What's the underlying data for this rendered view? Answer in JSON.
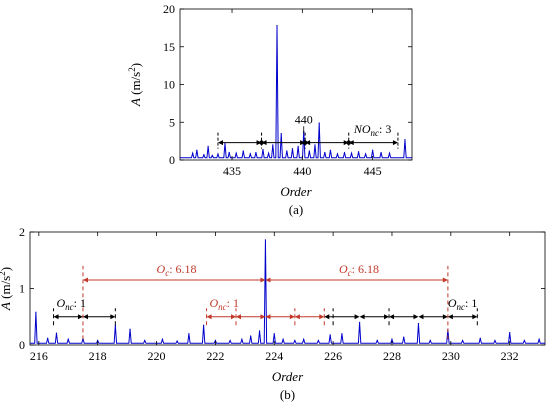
{
  "panels": {
    "a": {
      "label": "(a)"
    },
    "b": {
      "label": "(b)"
    }
  },
  "chart_data": [
    {
      "type": "line",
      "panel": "(a)",
      "xlabel": "Order",
      "ylabel": "A (m/s2)",
      "ylabel_parts": {
        "var": "A",
        "unit": " (m/s",
        "exp": "2",
        "close": ")"
      },
      "xlim": [
        431.3,
        447.8
      ],
      "ylim": [
        0,
        20
      ],
      "xticks": [
        435,
        440,
        445
      ],
      "yticks": [
        0,
        5,
        10,
        15,
        20
      ],
      "grid": false,
      "series_color": "#0000cc",
      "peaks": [
        {
          "x": 432.2,
          "y": 0.9
        },
        {
          "x": 432.5,
          "y": 1.3
        },
        {
          "x": 433.0,
          "y": 0.7
        },
        {
          "x": 433.3,
          "y": 1.8
        },
        {
          "x": 433.6,
          "y": 0.6
        },
        {
          "x": 434.0,
          "y": 0.8
        },
        {
          "x": 434.5,
          "y": 2.2
        },
        {
          "x": 434.8,
          "y": 1.0
        },
        {
          "x": 435.3,
          "y": 0.9
        },
        {
          "x": 435.8,
          "y": 1.2
        },
        {
          "x": 436.3,
          "y": 0.8
        },
        {
          "x": 436.7,
          "y": 1.0
        },
        {
          "x": 437.2,
          "y": 1.4
        },
        {
          "x": 437.6,
          "y": 0.9
        },
        {
          "x": 437.9,
          "y": 2.0
        },
        {
          "x": 438.2,
          "y": 17.8
        },
        {
          "x": 438.5,
          "y": 3.5
        },
        {
          "x": 438.9,
          "y": 1.2
        },
        {
          "x": 439.3,
          "y": 1.5
        },
        {
          "x": 439.7,
          "y": 1.8
        },
        {
          "x": 440.1,
          "y": 3.8
        },
        {
          "x": 440.5,
          "y": 1.2
        },
        {
          "x": 440.9,
          "y": 2.0
        },
        {
          "x": 441.2,
          "y": 4.9
        },
        {
          "x": 441.6,
          "y": 1.0
        },
        {
          "x": 442.0,
          "y": 1.3
        },
        {
          "x": 442.5,
          "y": 0.8
        },
        {
          "x": 443.0,
          "y": 1.0
        },
        {
          "x": 443.5,
          "y": 0.9
        },
        {
          "x": 444.0,
          "y": 1.1
        },
        {
          "x": 444.5,
          "y": 0.8
        },
        {
          "x": 445.0,
          "y": 1.3
        },
        {
          "x": 445.6,
          "y": 1.0
        },
        {
          "x": 446.2,
          "y": 0.9
        },
        {
          "x": 447.3,
          "y": 2.7
        }
      ],
      "intervals": [
        {
          "from": 434.0,
          "to": 437.1,
          "y": 2.3,
          "color": "#000000",
          "label": ""
        },
        {
          "from": 437.1,
          "to": 440.2,
          "y": 2.3,
          "color": "#000000",
          "label": ""
        },
        {
          "from": 440.2,
          "to": 443.3,
          "y": 2.3,
          "color": "#000000",
          "label": ""
        },
        {
          "from": 443.3,
          "to": 446.8,
          "y": 2.3,
          "color": "#000000",
          "label": ""
        }
      ],
      "markers": [
        437.1,
        440.2,
        443.3
      ],
      "annotations": [
        {
          "text": "440",
          "x": 440.1,
          "y": 4.6
        },
        {
          "text_sym": "NO",
          "text_sub": "nc",
          "text_val": ": 3",
          "x": 445.0,
          "y": 3.3
        }
      ]
    },
    {
      "type": "line",
      "panel": "(b)",
      "xlabel": "Order",
      "ylabel": "A (m/s2)",
      "ylabel_parts": {
        "var": "A",
        "unit": " (m/s",
        "exp": "2",
        "close": ")"
      },
      "xlim": [
        215.7,
        233.2
      ],
      "ylim": [
        0,
        2
      ],
      "xticks": [
        216,
        218,
        220,
        222,
        224,
        226,
        228,
        230,
        232
      ],
      "yticks": [
        0,
        1,
        2
      ],
      "grid": false,
      "series_color": "#0000cc",
      "peaks": [
        {
          "x": 215.9,
          "y": 0.58
        },
        {
          "x": 216.3,
          "y": 0.12
        },
        {
          "x": 216.6,
          "y": 0.21
        },
        {
          "x": 217.0,
          "y": 0.1
        },
        {
          "x": 217.5,
          "y": 0.12
        },
        {
          "x": 218.0,
          "y": 0.08
        },
        {
          "x": 218.6,
          "y": 0.35
        },
        {
          "x": 219.1,
          "y": 0.28
        },
        {
          "x": 219.6,
          "y": 0.08
        },
        {
          "x": 220.2,
          "y": 0.1
        },
        {
          "x": 220.7,
          "y": 0.07
        },
        {
          "x": 221.1,
          "y": 0.2
        },
        {
          "x": 221.6,
          "y": 0.35
        },
        {
          "x": 222.0,
          "y": 0.08
        },
        {
          "x": 222.5,
          "y": 0.08
        },
        {
          "x": 222.9,
          "y": 0.1
        },
        {
          "x": 223.2,
          "y": 0.16
        },
        {
          "x": 223.5,
          "y": 0.25
        },
        {
          "x": 223.7,
          "y": 1.86
        },
        {
          "x": 224.0,
          "y": 0.2
        },
        {
          "x": 224.3,
          "y": 0.1
        },
        {
          "x": 224.7,
          "y": 0.08
        },
        {
          "x": 225.0,
          "y": 0.1
        },
        {
          "x": 225.5,
          "y": 0.08
        },
        {
          "x": 225.9,
          "y": 0.18
        },
        {
          "x": 226.3,
          "y": 0.2
        },
        {
          "x": 226.9,
          "y": 0.4
        },
        {
          "x": 227.5,
          "y": 0.08
        },
        {
          "x": 228.0,
          "y": 0.1
        },
        {
          "x": 228.4,
          "y": 0.14
        },
        {
          "x": 228.9,
          "y": 0.38
        },
        {
          "x": 229.3,
          "y": 0.08
        },
        {
          "x": 229.9,
          "y": 0.28
        },
        {
          "x": 230.4,
          "y": 0.08
        },
        {
          "x": 231.0,
          "y": 0.12
        },
        {
          "x": 231.5,
          "y": 0.08
        },
        {
          "x": 232.0,
          "y": 0.22
        },
        {
          "x": 232.5,
          "y": 0.08
        },
        {
          "x": 233.0,
          "y": 0.1
        }
      ],
      "intervals": [
        {
          "from": 216.5,
          "to": 217.5,
          "y": 0.5,
          "color": "#000000"
        },
        {
          "from": 217.5,
          "to": 218.6,
          "y": 0.5,
          "color": "#000000"
        },
        {
          "from": 221.7,
          "to": 222.7,
          "y": 0.5,
          "color": "#c0392b"
        },
        {
          "from": 222.7,
          "to": 223.7,
          "y": 0.5,
          "color": "#c0392b"
        },
        {
          "from": 223.7,
          "to": 224.7,
          "y": 0.5,
          "color": "#c0392b"
        },
        {
          "from": 224.7,
          "to": 225.7,
          "y": 0.5,
          "color": "#c0392b"
        },
        {
          "from": 225.7,
          "to": 226.9,
          "y": 0.5,
          "color": "#000000"
        },
        {
          "from": 226.9,
          "to": 227.9,
          "y": 0.5,
          "color": "#000000"
        },
        {
          "from": 227.9,
          "to": 228.9,
          "y": 0.5,
          "color": "#000000"
        },
        {
          "from": 228.9,
          "to": 229.9,
          "y": 0.5,
          "color": "#000000"
        },
        {
          "from": 229.9,
          "to": 230.9,
          "y": 0.5,
          "color": "#000000"
        },
        {
          "from": 217.5,
          "to": 223.7,
          "y": 1.15,
          "color": "#c0392b"
        },
        {
          "from": 223.7,
          "to": 229.9,
          "y": 1.15,
          "color": "#c0392b"
        }
      ],
      "dashed_lines": [
        {
          "x": 216.5,
          "y1": 0.35,
          "y2": 0.65,
          "color": "#000000"
        },
        {
          "x": 217.5,
          "y1": 0.1,
          "y2": 1.4,
          "color": "#c0392b"
        },
        {
          "x": 218.6,
          "y1": 0.35,
          "y2": 0.65,
          "color": "#000000"
        },
        {
          "x": 221.7,
          "y1": 0.35,
          "y2": 0.65,
          "color": "#c0392b"
        },
        {
          "x": 222.7,
          "y1": 0.35,
          "y2": 0.65,
          "color": "#c0392b"
        },
        {
          "x": 224.7,
          "y1": 0.35,
          "y2": 0.65,
          "color": "#c0392b"
        },
        {
          "x": 225.7,
          "y1": 0.35,
          "y2": 0.65,
          "color": "#c0392b"
        },
        {
          "x": 226.0,
          "y1": 0.35,
          "y2": 0.65,
          "color": "#000000"
        },
        {
          "x": 227.9,
          "y1": 0.35,
          "y2": 0.65,
          "color": "#000000"
        },
        {
          "x": 229.9,
          "y1": 0.1,
          "y2": 1.4,
          "color": "#c0392b"
        },
        {
          "x": 230.9,
          "y1": 0.35,
          "y2": 0.65,
          "color": "#000000"
        }
      ],
      "annotations": [
        {
          "sym": "O",
          "sub": "nc",
          "val": ": 1",
          "x": 216.6,
          "y": 0.62,
          "color": "#000000"
        },
        {
          "sym": "O",
          "sub": "nc",
          "val": ": 1",
          "x": 221.8,
          "y": 0.62,
          "color": "#c0392b"
        },
        {
          "sym": "O",
          "sub": "c",
          "val": ": 6.18",
          "x": 220.0,
          "y": 1.22,
          "color": "#c0392b"
        },
        {
          "sym": "O",
          "sub": "c",
          "val": ": 6.18",
          "x": 226.2,
          "y": 1.22,
          "color": "#c0392b"
        },
        {
          "sym": "O",
          "sub": "nc",
          "val": ": 1",
          "x": 229.9,
          "y": 0.62,
          "color": "#000000"
        }
      ]
    }
  ]
}
